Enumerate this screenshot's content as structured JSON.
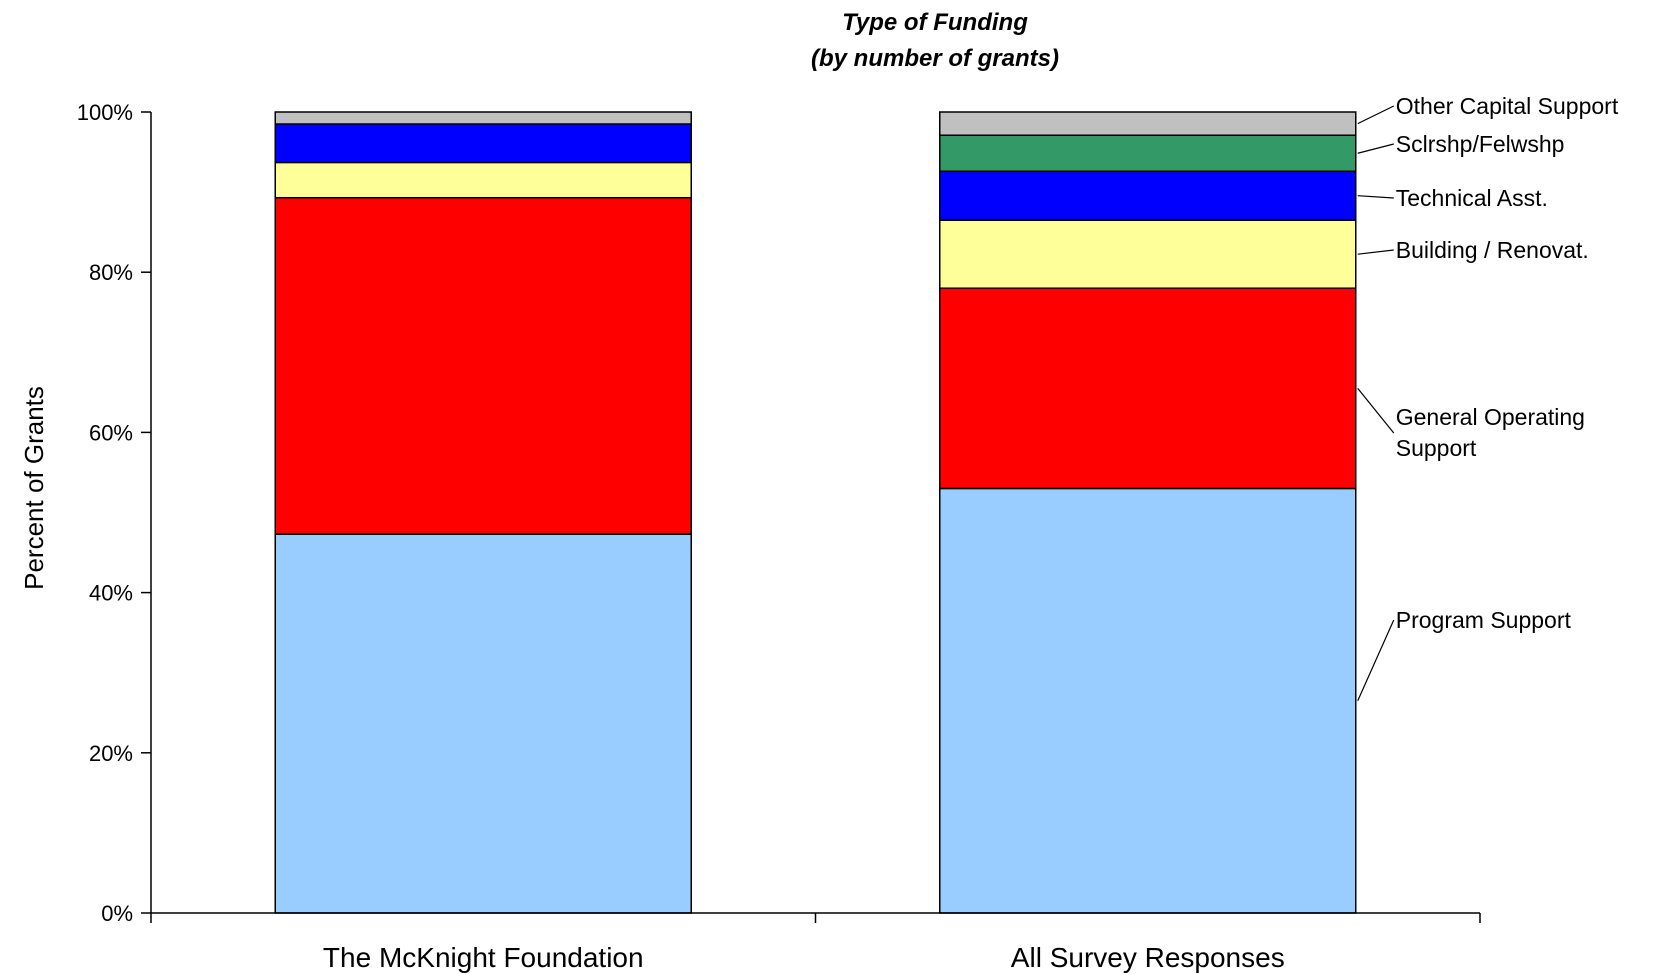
{
  "chart_data": {
    "type": "bar",
    "stacked": true,
    "percent_stacked": true,
    "title": "Type of Funding",
    "subtitle": "(by number of grants)",
    "xlabel": "",
    "ylabel": "Percent of Grants",
    "ylim": [
      0,
      100
    ],
    "y_ticks": [
      "0%",
      "20%",
      "40%",
      "60%",
      "80%",
      "100%"
    ],
    "categories": [
      "The McKnight Foundation",
      "All Survey Responses"
    ],
    "series": [
      {
        "name": "Program Support",
        "color": "#99CCFF",
        "values": [
          47.3,
          53.0
        ]
      },
      {
        "name": "General Operating Support",
        "color": "#FF0000",
        "values": [
          42.0,
          25.0
        ]
      },
      {
        "name": "Building / Renovat.",
        "color": "#FFFF99",
        "values": [
          4.4,
          8.5
        ]
      },
      {
        "name": "Technical Asst.",
        "color": "#0000FF",
        "values": [
          4.8,
          6.1
        ]
      },
      {
        "name": "Sclrshp/Felwshp",
        "color": "#339966",
        "values": [
          0.0,
          4.5
        ]
      },
      {
        "name": "Other Capital Support",
        "color": "#C0C0C0",
        "values": [
          1.5,
          2.9
        ]
      }
    ],
    "series_label_lines": [
      [
        "Program Support"
      ],
      [
        "General Operating",
        "Support"
      ],
      [
        "Building / Renovat."
      ],
      [
        "Technical Asst."
      ],
      [
        "Sclrshp/Felwshp"
      ],
      [
        "Other Capital Support"
      ]
    ],
    "legend": "series labels with leader lines to the right of the second bar",
    "grid": false
  }
}
